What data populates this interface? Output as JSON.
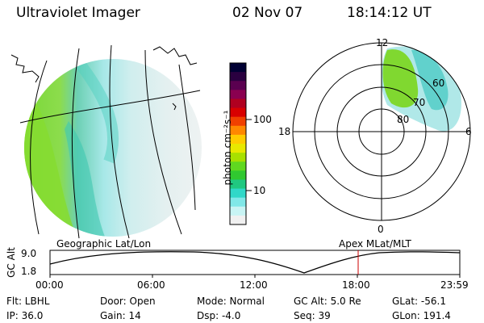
{
  "header": {
    "instrument": "Ultraviolet Imager",
    "date": "02 Nov 07",
    "time": "18:14:12 UT"
  },
  "colorbar": {
    "unit_label": "photon cm⁻²s⁻¹",
    "ticks": [
      "100",
      "10"
    ],
    "colors": [
      "#000033",
      "#2a0040",
      "#5a0050",
      "#8a0050",
      "#b00020",
      "#d80000",
      "#f04000",
      "#ff8800",
      "#ffcc00",
      "#e8e800",
      "#a8e000",
      "#60d820",
      "#30c830",
      "#20c880",
      "#30d8c8",
      "#80e8e8",
      "#c8f4f4",
      "#f0f0f0"
    ]
  },
  "polar_plot": {
    "mlt_labels": [
      "12",
      "18",
      "6",
      "0"
    ],
    "lat_labels": [
      "60",
      "70",
      "80"
    ]
  },
  "timeline": {
    "left_title": "Geographic Lat/Lon",
    "right_title": "Apex MLat/MLT",
    "axis_title": "GC Alt",
    "y_ticks": [
      "9.0",
      "1.8"
    ],
    "x_ticks": [
      "00:00",
      "06:00",
      "12:00",
      "18:00",
      "23:59"
    ],
    "current_time_marker": "18:14",
    "marker_color": "#cc0000"
  },
  "info": {
    "filter": "Flt: LBHL",
    "ip": "IP: 36.0",
    "door": "Door: Open",
    "gain": "Gain: 14",
    "mode": "Mode: Normal",
    "dsp": "Dsp:   -4.0",
    "gc_alt": "GC Alt: 5.0 Re",
    "seq": "Seq: 39",
    "glat": "GLat: -56.1",
    "glon": "GLon: 191.4"
  }
}
